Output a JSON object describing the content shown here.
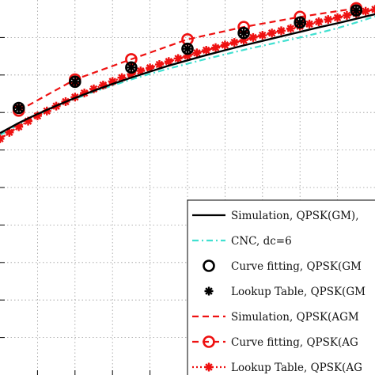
{
  "chart_data": {
    "type": "line",
    "xlim": [
      0,
      10
    ],
    "ylim": [
      0,
      10
    ],
    "grid": true,
    "grid_style": "dotted",
    "legend_position": "bottom-right",
    "series": [
      {
        "key": "sim_gm",
        "name": "Simulation, QPSK(GM),",
        "color": "#000000",
        "line": "solid",
        "marker": "none",
        "x": [
          0,
          0.5,
          1,
          1.5,
          2,
          2.5,
          3,
          3.5,
          4,
          4.5,
          5,
          5.5,
          6,
          6.5,
          7,
          7.5,
          8,
          8.5,
          9,
          9.5,
          10
        ],
        "y": [
          6.45,
          6.72,
          6.96,
          7.18,
          7.39,
          7.58,
          7.76,
          7.93,
          8.09,
          8.25,
          8.39,
          8.53,
          8.66,
          8.79,
          8.91,
          9.03,
          9.15,
          9.27,
          9.38,
          9.5,
          9.62
        ]
      },
      {
        "key": "cnc",
        "name": "CNC, dc=6",
        "color": "#40e0d0",
        "line": "dashdot",
        "marker": "none",
        "x": [
          0,
          0.5,
          1,
          1.5,
          2,
          2.5,
          3,
          3.5,
          4,
          4.5,
          5,
          5.5,
          6,
          6.5,
          7,
          7.5,
          8,
          8.5,
          9,
          9.5,
          10
        ],
        "y": [
          6.4,
          6.68,
          6.94,
          7.16,
          7.36,
          7.55,
          7.72,
          7.88,
          8.03,
          8.17,
          8.3,
          8.43,
          8.55,
          8.67,
          8.78,
          8.89,
          9.0,
          9.12,
          9.25,
          9.4,
          9.56
        ]
      },
      {
        "key": "cf_gm",
        "name": "Curve fitting, QPSK(GM",
        "color": "#000000",
        "line": "none",
        "marker": "open-circle",
        "x": [
          0.5,
          2,
          3.5,
          5,
          6.5,
          8,
          9.5
        ],
        "y": [
          7.12,
          7.82,
          8.2,
          8.7,
          9.12,
          9.4,
          9.72
        ]
      },
      {
        "key": "lt_gm",
        "name": "Lookup Table, QPSK(GM",
        "color": "#000000",
        "line": "none",
        "marker": "asterisk",
        "x": [
          0.5,
          2,
          3.5,
          5,
          6.5,
          8,
          9.5
        ],
        "y": [
          7.12,
          7.82,
          8.2,
          8.7,
          9.12,
          9.4,
          9.72
        ]
      },
      {
        "key": "sim_agm",
        "name": "Simulation, QPSK(AGM",
        "color": "#ee1111",
        "line": "dashed",
        "marker": "none",
        "x": [
          0,
          0.5,
          1,
          1.5,
          2,
          2.5,
          3,
          3.5,
          4,
          4.5,
          5,
          5.5,
          6,
          6.5,
          7,
          7.5,
          8,
          8.5,
          9,
          9.5,
          10
        ],
        "y": [
          6.3,
          6.62,
          6.91,
          7.17,
          7.41,
          7.63,
          7.83,
          8.02,
          8.19,
          8.36,
          8.51,
          8.66,
          8.8,
          8.93,
          9.06,
          9.18,
          9.3,
          9.42,
          9.53,
          9.64,
          9.75
        ]
      },
      {
        "key": "cf_agm",
        "name": "Curve fitting, QPSK(AG",
        "color": "#ee1111",
        "line": "dashed",
        "marker": "open-circle",
        "x": [
          0.5,
          2,
          3.5,
          5,
          6.5,
          8,
          9.5
        ],
        "y": [
          7.05,
          7.88,
          8.42,
          8.95,
          9.28,
          9.55,
          9.78
        ]
      },
      {
        "key": "lt_agm",
        "name": "Lookup Table, QPSK(AG",
        "color": "#ee1111",
        "line": "dotted",
        "marker": "asterisk",
        "x": [
          0,
          0.25,
          0.5,
          0.75,
          1,
          1.25,
          1.5,
          1.75,
          2,
          2.25,
          2.5,
          2.75,
          3,
          3.25,
          3.5,
          3.75,
          4,
          4.25,
          4.5,
          4.75,
          5,
          5.25,
          5.5,
          5.75,
          6,
          6.25,
          6.5,
          6.75,
          7,
          7.25,
          7.5,
          7.75,
          8,
          8.25,
          8.5,
          8.75,
          9,
          9.25,
          9.5,
          9.75,
          10
        ],
        "y": [
          6.3,
          6.47,
          6.62,
          6.77,
          6.91,
          7.04,
          7.17,
          7.29,
          7.41,
          7.52,
          7.63,
          7.73,
          7.83,
          7.93,
          8.02,
          8.11,
          8.19,
          8.28,
          8.36,
          8.44,
          8.51,
          8.59,
          8.66,
          8.73,
          8.8,
          8.87,
          8.93,
          9.0,
          9.06,
          9.12,
          9.18,
          9.24,
          9.3,
          9.36,
          9.42,
          9.48,
          9.53,
          9.59,
          9.64,
          9.7,
          9.75
        ]
      }
    ]
  }
}
